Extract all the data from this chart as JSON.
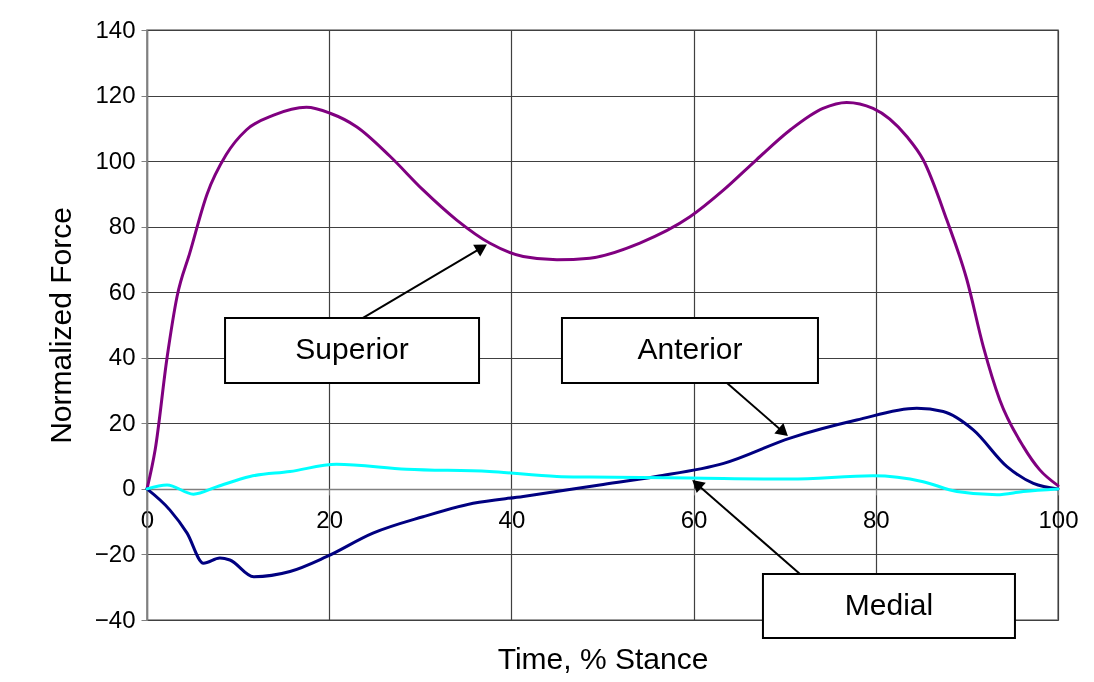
{
  "chart_data": {
    "type": "line",
    "xlabel": "Time, % Stance",
    "ylabel": "Normalized Force",
    "x": [
      0,
      0.9,
      2.2,
      3.3,
      4.7,
      6.6,
      8.7,
      10.9,
      13.9,
      17.5,
      20.1,
      23,
      26.7,
      30.3,
      34,
      37.6,
      41.3,
      45,
      48.6,
      54.1,
      59.6,
      63.3,
      66.9,
      70.6,
      74.2,
      76.8,
      79.7,
      83.4,
      85.2,
      87.8,
      90,
      91.8,
      93.6,
      96.2,
      98,
      100
    ],
    "series": [
      {
        "color": "#800080",
        "values": [
          0,
          12,
          40,
          58.7,
          72,
          90,
          102,
          109.5,
          114,
          116.4,
          114.6,
          110.5,
          101.4,
          91.2,
          82,
          75,
          70.9,
          69.9,
          70.4,
          75,
          83,
          91.2,
          100.4,
          109.5,
          116.1,
          117.9,
          116.1,
          107.5,
          100.4,
          82,
          63.8,
          43.4,
          27.2,
          12.9,
          5.8,
          1
        ]
      },
      {
        "color": "#000080",
        "x": [
          0,
          2.5,
          4.4,
          6.2,
          8,
          9.1,
          11.7,
          15.7,
          19.7,
          24.8,
          30.3,
          35.8,
          41.3,
          49.7,
          55.9,
          63.3,
          70.6,
          77.9,
          84.5,
          87.4,
          90.7,
          94.4,
          97.3,
          100
        ],
        "values": [
          0,
          -6.4,
          -13.5,
          -22.7,
          -21.1,
          -21.7,
          -26.8,
          -25.2,
          -20.7,
          -13.5,
          -8.5,
          -4.4,
          -2.3,
          1.2,
          3.8,
          7.8,
          15.5,
          21,
          24.6,
          23.6,
          18,
          6.8,
          1.7,
          0
        ]
      },
      {
        "color": "#00ffff",
        "x": [
          0,
          2.2,
          5.1,
          7.7,
          11.3,
          15.7,
          20.8,
          28.5,
          37.6,
          45,
          48.6,
          59.6,
          70.6,
          79.7,
          85.2,
          88.9,
          93.3,
          96.2,
          100
        ],
        "values": [
          0,
          1.2,
          -1.6,
          0.7,
          3.8,
          5.3,
          7.5,
          6,
          5.3,
          3.8,
          3.6,
          3.3,
          3,
          4,
          2.2,
          -0.8,
          -1.8,
          -0.8,
          0
        ]
      }
    ],
    "annotations": [
      "Superior",
      "Anterior",
      "Medial"
    ],
    "xlim": [
      0,
      100
    ],
    "xticks": [
      0,
      20,
      40,
      60,
      80,
      100
    ],
    "ylim": [
      -40,
      140
    ],
    "yticks": [
      -40,
      -20,
      0,
      20,
      40,
      60,
      80,
      100,
      120,
      140
    ],
    "grid": true,
    "line_style": "solid"
  }
}
